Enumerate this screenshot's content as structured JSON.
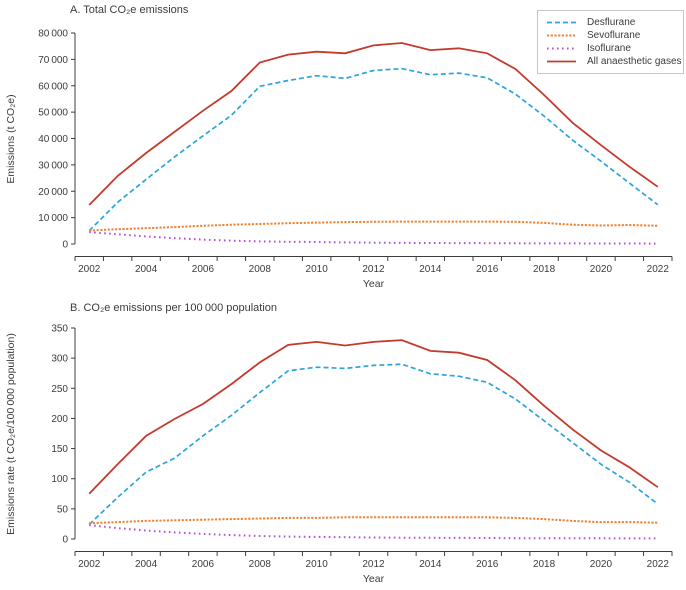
{
  "figure": {
    "background": "#ffffff",
    "text_color": "#3c3c3b",
    "axis_color": "#3c3c3b",
    "legend_border_color": "#c6c6c6"
  },
  "chart_data": [
    {
      "type": "line",
      "title": "A. Total CO₂e emissions",
      "xlabel": "Year",
      "ylabel": "Emissions (t CO₂e)",
      "x": [
        2002,
        2003,
        2004,
        2005,
        2006,
        2007,
        2008,
        2009,
        2010,
        2011,
        2012,
        2013,
        2014,
        2015,
        2016,
        2017,
        2018,
        2019,
        2020,
        2021,
        2022
      ],
      "x_tick_labels": [
        "2002",
        "2004",
        "2006",
        "2008",
        "2010",
        "2012",
        "2014",
        "2016",
        "2018",
        "2020",
        "2022"
      ],
      "ylim": [
        0,
        80000
      ],
      "ytick_step": 10000,
      "ytick_labels": [
        "0",
        "10 000",
        "20 000",
        "30 000",
        "40 000",
        "50 000",
        "60 000",
        "70 000",
        "80 000"
      ],
      "grid": false,
      "legend_visible": true,
      "legend_position": "top-right",
      "series": [
        {
          "name": "Desflurane",
          "color": "#2da4da",
          "dash": "dashed",
          "values": [
            5000,
            15800,
            24500,
            33000,
            41000,
            48800,
            59800,
            62000,
            63800,
            62800,
            65800,
            66500,
            64200,
            64800,
            63000,
            56800,
            48500,
            39400,
            31400,
            23100,
            14900
          ]
        },
        {
          "name": "Sevoflurane",
          "color": "#ec8434",
          "dash": "dense-dash",
          "values": [
            5100,
            5600,
            6000,
            6400,
            6900,
            7300,
            7600,
            7900,
            8100,
            8300,
            8400,
            8500,
            8500,
            8500,
            8500,
            8400,
            8000,
            7300,
            7000,
            7200,
            6900
          ]
        },
        {
          "name": "Isoflurane",
          "color": "#b44fd6",
          "dash": "dotted",
          "values": [
            4500,
            3700,
            2900,
            2200,
            1650,
            1250,
            1000,
            850,
            760,
            620,
            500,
            430,
            380,
            330,
            290,
            260,
            230,
            210,
            190,
            180,
            170
          ]
        },
        {
          "name": "All anaesthetic gases",
          "color": "#c43a2c",
          "dash": "solid",
          "values": [
            14800,
            25800,
            34500,
            42500,
            50500,
            58000,
            68800,
            71800,
            72900,
            72300,
            75300,
            76200,
            73500,
            74200,
            72300,
            66300,
            56500,
            46000,
            37500,
            29300,
            21700
          ]
        }
      ]
    },
    {
      "type": "line",
      "title": "B. CO₂e emissions per 100 000 population",
      "xlabel": "Year",
      "ylabel": "Emissions rate (t CO₂e/100 000 population)",
      "x": [
        2002,
        2003,
        2004,
        2005,
        2006,
        2007,
        2008,
        2009,
        2010,
        2011,
        2012,
        2013,
        2014,
        2015,
        2016,
        2017,
        2018,
        2019,
        2020,
        2021,
        2022
      ],
      "x_tick_labels": [
        "2002",
        "2004",
        "2006",
        "2008",
        "2010",
        "2012",
        "2014",
        "2016",
        "2018",
        "2020",
        "2022"
      ],
      "ylim": [
        0,
        350
      ],
      "ytick_step": 50,
      "ytick_labels": [
        "0",
        "50",
        "100",
        "150",
        "200",
        "250",
        "300",
        "350"
      ],
      "grid": false,
      "legend_visible": false,
      "legend_position": "none",
      "series": [
        {
          "name": "Desflurane",
          "color": "#2da4da",
          "dash": "dashed",
          "values": [
            24,
            69,
            111,
            134,
            171,
            205,
            243,
            279,
            285,
            283,
            288,
            290,
            274,
            270,
            260,
            232,
            196,
            160,
            124,
            94,
            58
          ]
        },
        {
          "name": "Sevoflurane",
          "color": "#ec8434",
          "dash": "dense-dash",
          "values": [
            26,
            28,
            30,
            31,
            32,
            33,
            34,
            35,
            35,
            36,
            36,
            36,
            36,
            36,
            36,
            35,
            33,
            30,
            28,
            28,
            27
          ]
        },
        {
          "name": "Isoflurane",
          "color": "#b44fd6",
          "dash": "dotted",
          "values": [
            23,
            18,
            14,
            11,
            8.5,
            6.5,
            5,
            4,
            3.5,
            3,
            2.5,
            2.2,
            2,
            1.8,
            1.6,
            1.4,
            1.3,
            1.2,
            1.1,
            1,
            1
          ]
        },
        {
          "name": "All anaesthetic gases",
          "color": "#c43a2c",
          "dash": "solid",
          "values": [
            75,
            124,
            171,
            199,
            224,
            257,
            293,
            322,
            327,
            321,
            327,
            330,
            312,
            309,
            297,
            263,
            221,
            182,
            147,
            119,
            86
          ]
        }
      ]
    }
  ]
}
